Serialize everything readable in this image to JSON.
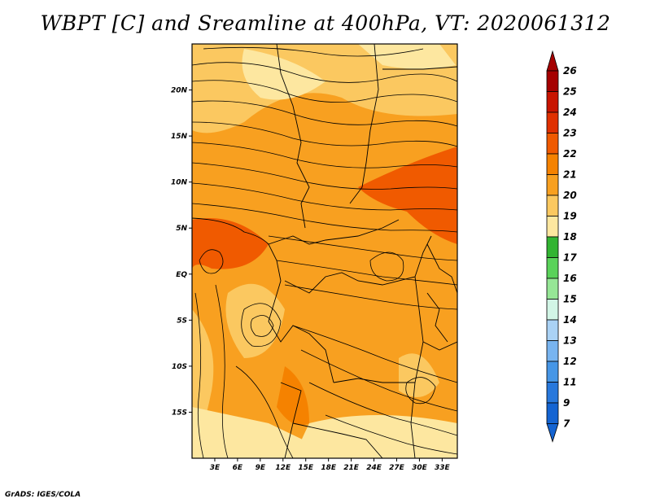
{
  "title": "WBPT [C] and Sreamline at 400hPa, VT: 2020061312",
  "footer": "GrADS: IGES/COLA",
  "map": {
    "lat_ticks": [
      "20N",
      "15N",
      "10N",
      "5N",
      "EQ",
      "5S",
      "10S",
      "15S"
    ],
    "lat_values": [
      20,
      15,
      10,
      5,
      0,
      -5,
      -10,
      -15
    ],
    "lon_ticks": [
      "3E",
      "6E",
      "9E",
      "12E",
      "15E",
      "18E",
      "21E",
      "24E",
      "27E",
      "30E",
      "33E"
    ],
    "lon_values": [
      3,
      6,
      9,
      12,
      15,
      18,
      21,
      24,
      27,
      30,
      33
    ],
    "lon_range": [
      0,
      35
    ],
    "lat_range": [
      -20,
      25
    ]
  },
  "colorbar": {
    "labels": [
      "26",
      "25",
      "24",
      "23",
      "22",
      "21",
      "20",
      "19",
      "18",
      "17",
      "16",
      "15",
      "14",
      "13",
      "12",
      "11",
      "9",
      "7"
    ],
    "colors": [
      "#a50000",
      "#c81400",
      "#e03000",
      "#f05a00",
      "#f58200",
      "#f8a020",
      "#fbc860",
      "#fde7a0",
      "#32b432",
      "#5ad25a",
      "#96e696",
      "#d2f5e6",
      "#aad2f5",
      "#78b4f0",
      "#4696e6",
      "#2878dc",
      "#1464d2"
    ]
  }
}
